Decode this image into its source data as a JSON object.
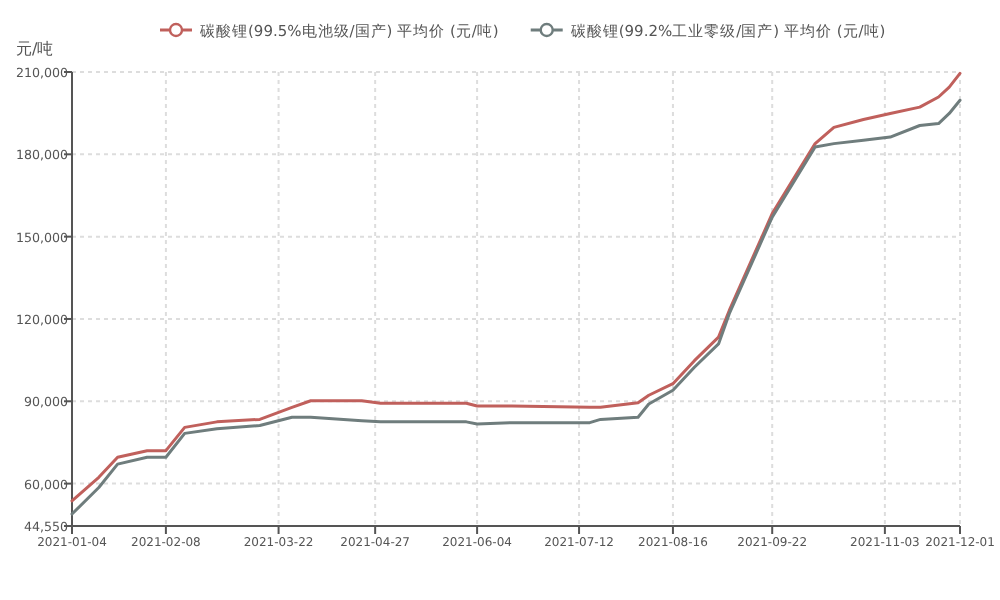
{
  "chart_data": {
    "type": "line",
    "ylabel": "元/吨",
    "legend": "top",
    "grid": true,
    "xlim": [
      "2021-01-04",
      "2021-12-01"
    ],
    "xticks": [
      "2021-01-04",
      "2021-02-08",
      "2021-03-22",
      "2021-04-27",
      "2021-06-04",
      "2021-07-12",
      "2021-08-16",
      "2021-09-22",
      "2021-11-03",
      "2021-12-01"
    ],
    "ylim": [
      44550,
      210000
    ],
    "yticks": [
      {
        "value": 44550,
        "label": "44,550"
      },
      {
        "value": 60000,
        "label": "60,000"
      },
      {
        "value": 90000,
        "label": "90,000"
      },
      {
        "value": 120000,
        "label": "120,000"
      },
      {
        "value": 150000,
        "label": "150,000"
      },
      {
        "value": 180000,
        "label": "180,000"
      },
      {
        "value": 210000,
        "label": "210,000"
      }
    ],
    "x": [
      "2021-01-04",
      "2021-01-14",
      "2021-01-21",
      "2021-02-01",
      "2021-02-08",
      "2021-02-15",
      "2021-02-27",
      "2021-03-15",
      "2021-03-27",
      "2021-04-03",
      "2021-04-22",
      "2021-04-29",
      "2021-05-31",
      "2021-06-04",
      "2021-06-17",
      "2021-07-16",
      "2021-07-20",
      "2021-08-03",
      "2021-08-07",
      "2021-08-16",
      "2021-08-24",
      "2021-09-02",
      "2021-09-06",
      "2021-09-22",
      "2021-10-08",
      "2021-10-15",
      "2021-10-26",
      "2021-11-05",
      "2021-11-16",
      "2021-11-23",
      "2021-11-27",
      "2021-12-01"
    ],
    "series": [
      {
        "name": "碳酸锂(99.5%电池级/国产) 平均价 (元/吨)",
        "color": "#c0605c",
        "values": [
          53700,
          62300,
          69600,
          72000,
          72000,
          80500,
          82500,
          83400,
          87800,
          90200,
          90200,
          89300,
          89300,
          88300,
          88300,
          87800,
          87800,
          89500,
          92200,
          96400,
          104800,
          113400,
          123100,
          158400,
          183900,
          189800,
          192700,
          194900,
          197200,
          200900,
          204500,
          209500
        ]
      },
      {
        "name": "碳酸锂(99.2%工业零级/国产) 平均价 (元/吨)",
        "color": "#6f7d7d",
        "values": [
          48900,
          58600,
          67100,
          69600,
          69600,
          78300,
          80000,
          81200,
          84200,
          84200,
          82900,
          82500,
          82500,
          81700,
          82200,
          82200,
          83400,
          84200,
          89000,
          94000,
          102400,
          110900,
          121900,
          157100,
          182700,
          183900,
          185100,
          186300,
          190500,
          191200,
          194900,
          199700
        ]
      }
    ]
  }
}
